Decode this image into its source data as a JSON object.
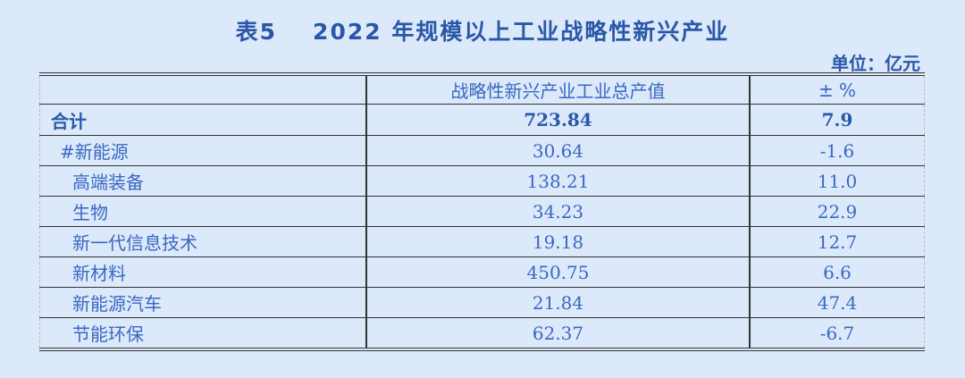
{
  "title": {
    "number": "表5",
    "text": "2022 年规模以上工业战略性新兴产业"
  },
  "unit": "单位：亿元",
  "table": {
    "headers": [
      "",
      "战略性新兴产业工业总产值",
      "± %"
    ],
    "total": {
      "name": "合计",
      "value": "723.84",
      "change": "7.9"
    },
    "rows": [
      {
        "name": "#新能源",
        "value": "30.64",
        "change": "-1.6"
      },
      {
        "name": "高端装备",
        "value": "138.21",
        "change": "11.0"
      },
      {
        "name": "生物",
        "value": "34.23",
        "change": "22.9"
      },
      {
        "name": "新一代信息技术",
        "value": "19.18",
        "change": "12.7"
      },
      {
        "name": "新材料",
        "value": "450.75",
        "change": "6.6"
      },
      {
        "name": "新能源汽车",
        "value": "21.84",
        "change": "47.4"
      },
      {
        "name": "节能环保",
        "value": "62.37",
        "change": "-6.7"
      }
    ]
  }
}
